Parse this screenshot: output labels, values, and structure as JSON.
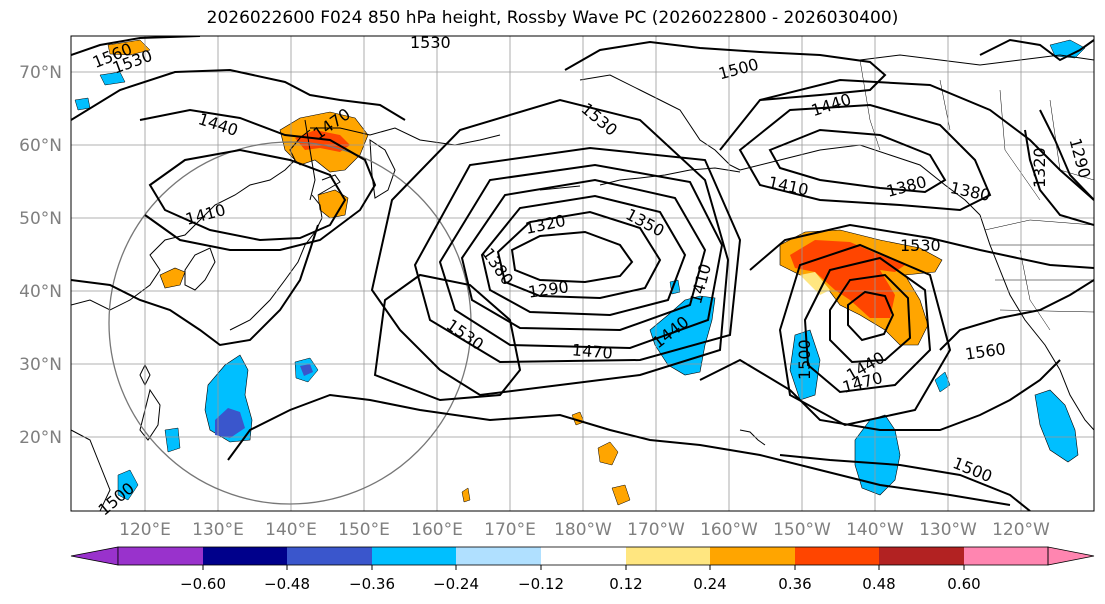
{
  "title": "2026022600 F024 850 hPa height, Rossby Wave PC (2026022800 - 2026030400)",
  "lat_labels": [
    "70°N",
    "60°N",
    "50°N",
    "40°N",
    "30°N",
    "20°N"
  ],
  "lon_labels": [
    "120°E",
    "130°E",
    "140°E",
    "150°E",
    "160°E",
    "170°E",
    "180°W",
    "170°W",
    "160°W",
    "150°W",
    "140°W",
    "130°W",
    "120°W"
  ],
  "contour_labels": [
    "1560",
    "1530",
    "1530",
    "1500",
    "1440",
    "1530",
    "1470",
    "1440",
    "1410",
    "1410",
    "1320",
    "1350",
    "1290",
    "1380",
    "1410",
    "1440",
    "1530",
    "1470",
    "1530",
    "1500",
    "1440",
    "1470",
    "1560",
    "1380",
    "1380",
    "1320",
    "1290",
    "1500",
    "1500"
  ],
  "colorbar": {
    "ticks": [
      "−0.60",
      "−0.48",
      "−0.36",
      "−0.24",
      "−0.12",
      "0.12",
      "0.24",
      "0.36",
      "0.48",
      "0.60"
    ],
    "colors": [
      "#9932cc",
      "#00008b",
      "#3a56cc",
      "#00bfff",
      "#b0e0ff",
      "#ffffff",
      "#ffe680",
      "#ffa500",
      "#ff4500",
      "#b22222",
      "#ff85b0"
    ]
  }
}
